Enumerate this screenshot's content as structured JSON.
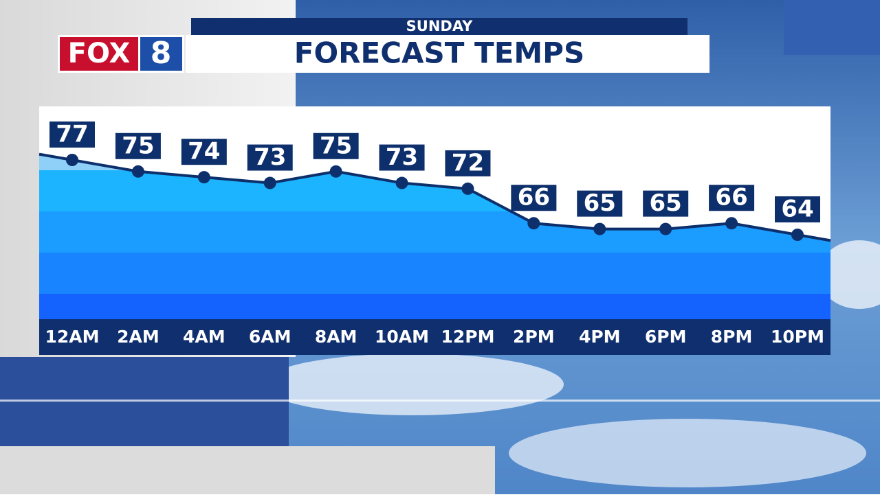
{
  "logo": {
    "brand": "FOX",
    "number": "8"
  },
  "chart_data": {
    "type": "line",
    "title": "FORECAST TEMPS",
    "subtitle": "SUNDAY",
    "categories": [
      "12AM",
      "2AM",
      "4AM",
      "6AM",
      "8AM",
      "10AM",
      "12PM",
      "2PM",
      "4PM",
      "6PM",
      "8PM",
      "10PM"
    ],
    "values": [
      77,
      75,
      74,
      73,
      75,
      73,
      72,
      66,
      65,
      65,
      66,
      64
    ],
    "color": "#0d2f6b"
  }
}
